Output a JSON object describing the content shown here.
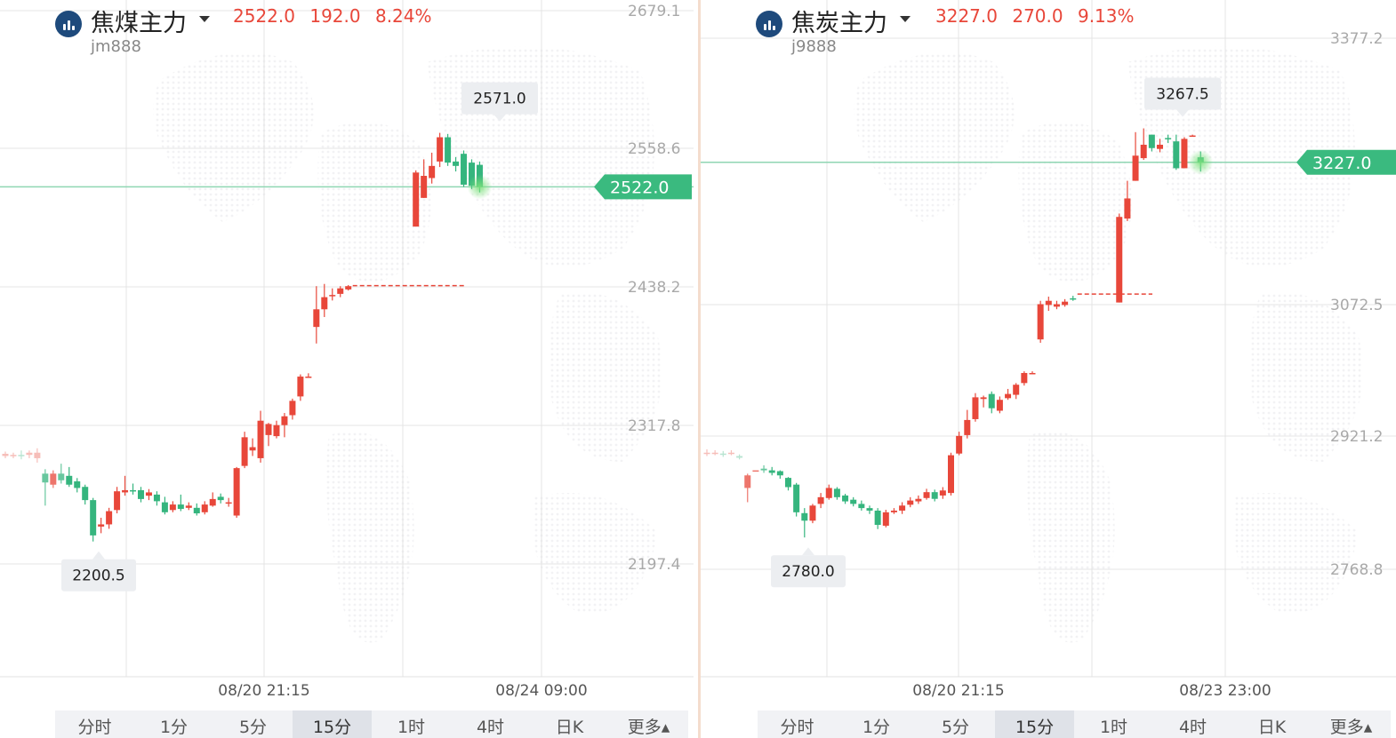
{
  "colors": {
    "up": "#e8473a",
    "down": "#35b57e",
    "price_tag": "#3aba7f",
    "grid": "#e4e4e4",
    "axis_text": "#a9a9a9",
    "logo": "#1e4a7c"
  },
  "timeframe_tabs": [
    "分时",
    "1分",
    "5分",
    "15分",
    "1时",
    "4时",
    "日K",
    "更多▴"
  ],
  "active_tab": "15分",
  "instruments": [
    {
      "name": "焦煤主力",
      "code": "jm888",
      "last": "2522.0",
      "change": "192.0",
      "change_pct": "8.24%",
      "current_price_tag": "2522.0",
      "high_label": "2571.0",
      "low_label": "2200.5",
      "dashed_level": 2432.5,
      "chart_data": {
        "type": "candlestick",
        "price_range": [
          2160,
          2685
        ],
        "y_ticks": [
          "2679.1",
          "2558.6",
          "2438.2",
          "2317.8",
          "2197.4"
        ],
        "x_ticks": [
          "08/20 21:15",
          "08/24 09:00"
        ],
        "current_price": 2522.0,
        "high": 2571.0,
        "low": 2200.5,
        "candles": [
          [
            2278,
            2280,
            2282,
            2276
          ],
          [
            2279,
            2279,
            2281,
            2276
          ],
          [
            2279,
            2278,
            2283,
            2275
          ],
          [
            2279,
            2281,
            2283,
            2276
          ],
          [
            2276,
            2281,
            2285,
            2272
          ],
          [
            2262,
            2254,
            2266,
            2233
          ],
          [
            2252,
            2262,
            2265,
            2249
          ],
          [
            2262,
            2256,
            2271,
            2253
          ],
          [
            2260,
            2252,
            2268,
            2250
          ],
          [
            2255,
            2249,
            2258,
            2245
          ],
          [
            2250,
            2238,
            2252,
            2234
          ],
          [
            2238,
            2206,
            2240,
            2200.5
          ],
          [
            2214,
            2216,
            2222,
            2208
          ],
          [
            2216,
            2228,
            2231,
            2212
          ],
          [
            2229,
            2246,
            2250,
            2226
          ],
          [
            2245,
            2247,
            2260,
            2242
          ],
          [
            2247,
            2246,
            2253,
            2243
          ],
          [
            2247,
            2239,
            2250,
            2236
          ],
          [
            2242,
            2245,
            2248,
            2238
          ],
          [
            2243,
            2237,
            2246,
            2233
          ],
          [
            2236,
            2227,
            2241,
            2225
          ],
          [
            2229,
            2234,
            2237,
            2227
          ],
          [
            2234,
            2230,
            2243,
            2228
          ],
          [
            2231,
            2233,
            2236,
            2229
          ],
          [
            2231,
            2226,
            2235,
            2224
          ],
          [
            2227,
            2234,
            2237,
            2225
          ],
          [
            2233,
            2239,
            2245,
            2232
          ],
          [
            2241,
            2238,
            2244,
            2235
          ],
          [
            2236,
            2236,
            2240,
            2232
          ],
          [
            2224,
            2267,
            2268,
            2222
          ],
          [
            2269,
            2295,
            2300,
            2267
          ],
          [
            2283,
            2286,
            2294,
            2278
          ],
          [
            2276,
            2310,
            2319,
            2272
          ],
          [
            2297,
            2307,
            2308,
            2287
          ],
          [
            2296,
            2306,
            2310,
            2294
          ],
          [
            2306,
            2314,
            2317,
            2295
          ],
          [
            2315,
            2328,
            2330,
            2311
          ],
          [
            2332,
            2350,
            2352,
            2328
          ],
          [
            2350,
            2350,
            2353,
            2350
          ],
          [
            2395,
            2411,
            2432,
            2380
          ],
          [
            2411,
            2422,
            2434,
            2404
          ],
          [
            2424,
            2424,
            2430,
            2419
          ],
          [
            2425,
            2430,
            2432,
            2422
          ],
          [
            2429,
            2432,
            2433,
            2428
          ],
          [
            2486,
            2535,
            2537,
            2486
          ],
          [
            2512,
            2532,
            2547,
            2512
          ],
          [
            2530,
            2541,
            2553,
            2525
          ],
          [
            2545,
            2567,
            2571,
            2540
          ],
          [
            2567,
            2544,
            2570,
            2541
          ],
          [
            2545,
            2541,
            2549,
            2536
          ],
          [
            2552,
            2524,
            2555,
            2522
          ],
          [
            2544,
            2523,
            2547,
            2520
          ],
          [
            2542,
            2522,
            2545,
            2517
          ]
        ]
      }
    },
    {
      "name": "焦炭主力",
      "code": "j9888",
      "last": "3227.0",
      "change": "270.0",
      "change_pct": "9.13%",
      "current_price_tag": "3227.0",
      "high_label": "3267.5",
      "low_label": "2780.0",
      "dashed_level": 3070,
      "chart_data": {
        "type": "candlestick",
        "price_range": [
          2722,
          3412
        ],
        "y_ticks": [
          "3377.2",
          "3072.5",
          "2921.2",
          "2768.8"
        ],
        "x_ticks": [
          "08/20 21:15",
          "08/23 23:00"
        ],
        "current_price": 3227.0,
        "high": 3267.5,
        "low": 2780.0,
        "candles": [
          [
            2880,
            2881,
            2885,
            2877
          ],
          [
            2880,
            2881,
            2884,
            2878
          ],
          [
            2880,
            2879,
            2883,
            2876
          ],
          [
            2881,
            2881,
            2884,
            2878
          ],
          [
            2877,
            2875,
            2879,
            2873
          ],
          [
            2839,
            2854,
            2856,
            2822
          ],
          [
            2860,
            2860,
            2860,
            2860
          ],
          [
            2862,
            2860,
            2866,
            2857
          ],
          [
            2860,
            2857,
            2864,
            2854
          ],
          [
            2859,
            2854,
            2860,
            2850
          ],
          [
            2851,
            2840,
            2852,
            2836
          ],
          [
            2843,
            2810,
            2845,
            2805
          ],
          [
            2809,
            2800,
            2815,
            2780
          ],
          [
            2800,
            2818,
            2820,
            2797
          ],
          [
            2820,
            2828,
            2833,
            2815
          ],
          [
            2827,
            2839,
            2843,
            2825
          ],
          [
            2838,
            2828,
            2840,
            2825
          ],
          [
            2830,
            2823,
            2832,
            2820
          ],
          [
            2825,
            2820,
            2828,
            2817
          ],
          [
            2820,
            2815,
            2824,
            2812
          ],
          [
            2815,
            2812,
            2818,
            2808
          ],
          [
            2812,
            2795,
            2815,
            2790
          ],
          [
            2794,
            2810,
            2813,
            2792
          ],
          [
            2810,
            2812,
            2815,
            2808
          ],
          [
            2812,
            2818,
            2822,
            2808
          ],
          [
            2819,
            2824,
            2828,
            2816
          ],
          [
            2823,
            2826,
            2830,
            2820
          ],
          [
            2827,
            2834,
            2838,
            2825
          ],
          [
            2834,
            2826,
            2837,
            2823
          ],
          [
            2830,
            2836,
            2840,
            2826
          ],
          [
            2833,
            2878,
            2881,
            2830
          ],
          [
            2880,
            2901,
            2906,
            2878
          ],
          [
            2902,
            2920,
            2932,
            2898
          ],
          [
            2921,
            2947,
            2952,
            2918
          ],
          [
            2945,
            2947,
            2949,
            2935
          ],
          [
            2951,
            2934,
            2954,
            2928
          ],
          [
            2931,
            2944,
            2948,
            2928
          ],
          [
            2946,
            2951,
            2957,
            2944
          ],
          [
            2950,
            2962,
            2964,
            2945
          ],
          [
            2964,
            2976,
            2978,
            2961
          ],
          [
            2976,
            2976,
            2978,
            2976
          ],
          [
            3016,
            3058,
            3062,
            3012
          ],
          [
            3057,
            3062,
            3067,
            3050
          ],
          [
            3055,
            3058,
            3062,
            3052
          ],
          [
            3057,
            3061,
            3064,
            3055
          ],
          [
            3065,
            3064,
            3068,
            3062
          ],
          [
            3060,
            3162,
            3166,
            3060
          ],
          [
            3160,
            3184,
            3205,
            3157
          ],
          [
            3205,
            3235,
            3263,
            3205
          ],
          [
            3232,
            3248,
            3267.5,
            3230
          ],
          [
            3260,
            3244,
            3260,
            3240
          ],
          [
            3243,
            3248,
            3255,
            3239
          ],
          [
            3256,
            3255,
            3260,
            3250
          ],
          [
            3252,
            3220,
            3260,
            3218
          ],
          [
            3220,
            3255,
            3257,
            3220
          ],
          [
            3258,
            3259,
            3260,
            3258
          ],
          [
            3233,
            3227,
            3240,
            3216
          ]
        ]
      }
    }
  ]
}
